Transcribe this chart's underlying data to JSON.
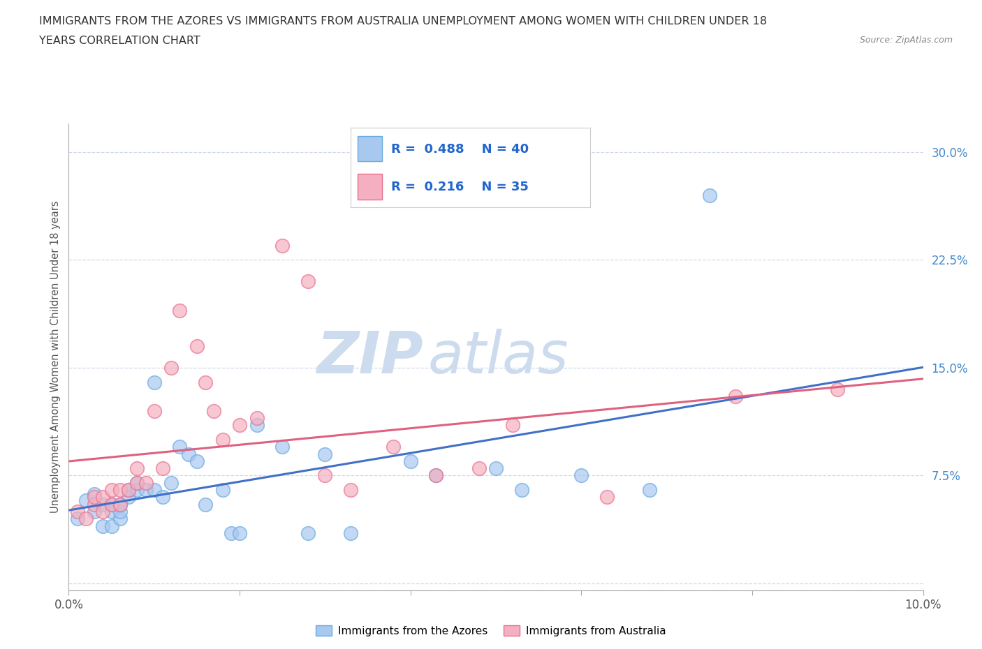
{
  "title_line1": "IMMIGRANTS FROM THE AZORES VS IMMIGRANTS FROM AUSTRALIA UNEMPLOYMENT AMONG WOMEN WITH CHILDREN UNDER 18",
  "title_line2": "YEARS CORRELATION CHART",
  "source": "Source: ZipAtlas.com",
  "ylabel": "Unemployment Among Women with Children Under 18 years",
  "xlim": [
    0.0,
    0.1
  ],
  "ylim": [
    -0.005,
    0.32
  ],
  "xticks": [
    0.0,
    0.02,
    0.04,
    0.06,
    0.08,
    0.1
  ],
  "xticklabels": [
    "0.0%",
    "",
    "",
    "",
    "",
    "10.0%"
  ],
  "yticks": [
    0.0,
    0.075,
    0.15,
    0.225,
    0.3
  ],
  "yticklabels": [
    "",
    "7.5%",
    "15.0%",
    "22.5%",
    "30.0%"
  ],
  "R_azores": 0.488,
  "N_azores": 40,
  "R_australia": 0.216,
  "N_australia": 35,
  "color_azores": "#a8c8f0",
  "color_australia": "#f4b0c0",
  "edge_color_azores": "#6aaae0",
  "edge_color_australia": "#e87090",
  "line_color_azores": "#4070c8",
  "line_color_australia": "#e06080",
  "watermark_color": "#ccdcee",
  "background_color": "#ffffff",
  "grid_color": "#d0d8e8",
  "azores_x": [
    0.001,
    0.002,
    0.003,
    0.003,
    0.004,
    0.004,
    0.005,
    0.005,
    0.005,
    0.006,
    0.006,
    0.006,
    0.007,
    0.007,
    0.008,
    0.008,
    0.009,
    0.01,
    0.01,
    0.011,
    0.012,
    0.013,
    0.014,
    0.015,
    0.016,
    0.018,
    0.019,
    0.02,
    0.022,
    0.025,
    0.028,
    0.03,
    0.033,
    0.04,
    0.043,
    0.05,
    0.053,
    0.06,
    0.068,
    0.075
  ],
  "azores_y": [
    0.045,
    0.058,
    0.05,
    0.062,
    0.04,
    0.055,
    0.04,
    0.05,
    0.055,
    0.045,
    0.05,
    0.055,
    0.06,
    0.065,
    0.065,
    0.07,
    0.065,
    0.14,
    0.065,
    0.06,
    0.07,
    0.095,
    0.09,
    0.085,
    0.055,
    0.065,
    0.035,
    0.035,
    0.11,
    0.095,
    0.035,
    0.09,
    0.035,
    0.085,
    0.075,
    0.08,
    0.065,
    0.075,
    0.065,
    0.27
  ],
  "australia_x": [
    0.001,
    0.002,
    0.003,
    0.003,
    0.004,
    0.004,
    0.005,
    0.005,
    0.006,
    0.006,
    0.007,
    0.008,
    0.008,
    0.009,
    0.01,
    0.011,
    0.012,
    0.013,
    0.015,
    0.016,
    0.017,
    0.018,
    0.02,
    0.022,
    0.025,
    0.028,
    0.03,
    0.033,
    0.038,
    0.043,
    0.048,
    0.052,
    0.063,
    0.078,
    0.09
  ],
  "australia_y": [
    0.05,
    0.045,
    0.055,
    0.06,
    0.05,
    0.06,
    0.055,
    0.065,
    0.055,
    0.065,
    0.065,
    0.07,
    0.08,
    0.07,
    0.12,
    0.08,
    0.15,
    0.19,
    0.165,
    0.14,
    0.12,
    0.1,
    0.11,
    0.115,
    0.235,
    0.21,
    0.075,
    0.065,
    0.095,
    0.075,
    0.08,
    0.11,
    0.06,
    0.13,
    0.135
  ]
}
